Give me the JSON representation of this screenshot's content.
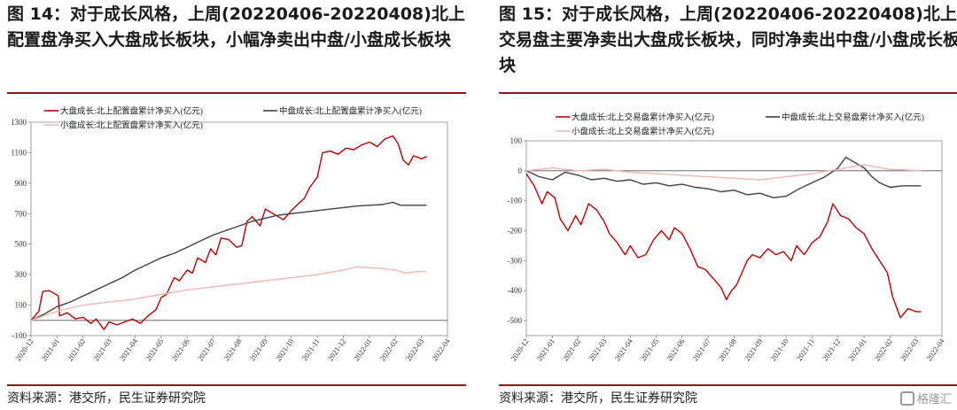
{
  "panels": [
    {
      "title": "图 14：对于成长风格，上周(20220406-20220408)北上配置盘净买入大盘成长板块，小幅净卖出中盘/小盘成长板块",
      "source": "资料来源：港交所，民生证券研究院"
    },
    {
      "title": "图 15：对于成长风格，上周(20220406-20220408)北上交易盘主要净卖出大盘成长板块，同时净卖出中盘/小盘成长板块",
      "source": "资料来源：港交所，民生证券研究院"
    }
  ],
  "watermark": "格隆汇",
  "chart_data": [
    {
      "type": "line",
      "ylim": [
        -100,
        1300
      ],
      "yticks": [
        -100,
        100,
        300,
        500,
        700,
        900,
        1100,
        1300
      ],
      "xticks": [
        "2020-12",
        "2021-01",
        "2021-02",
        "2021-03",
        "2021-04",
        "2021-05",
        "2021-06",
        "2021-07",
        "2021-08",
        "2021-09",
        "2021-10",
        "2021-11",
        "2021-12",
        "2022-01",
        "2022-02",
        "2022-03",
        "2022-04"
      ],
      "grid": false,
      "legend_position": "top",
      "series": [
        {
          "name": "大盘成长:北上配置盘累计净买入(亿元)",
          "color": "#c00000",
          "points": [
            [
              0,
              0
            ],
            [
              0.3,
              60
            ],
            [
              0.45,
              190
            ],
            [
              0.7,
              195
            ],
            [
              1.05,
              160
            ],
            [
              1.1,
              30
            ],
            [
              1.4,
              50
            ],
            [
              1.7,
              10
            ],
            [
              2.0,
              20
            ],
            [
              2.3,
              -20
            ],
            [
              2.5,
              10
            ],
            [
              2.8,
              -60
            ],
            [
              3.0,
              -10
            ],
            [
              3.3,
              -30
            ],
            [
              3.6,
              -10
            ],
            [
              3.9,
              10
            ],
            [
              4.2,
              -20
            ],
            [
              4.5,
              30
            ],
            [
              4.8,
              70
            ],
            [
              5.0,
              150
            ],
            [
              5.2,
              170
            ],
            [
              5.5,
              280
            ],
            [
              5.7,
              260
            ],
            [
              6.0,
              330
            ],
            [
              6.2,
              310
            ],
            [
              6.4,
              410
            ],
            [
              6.7,
              380
            ],
            [
              6.9,
              470
            ],
            [
              7.1,
              430
            ],
            [
              7.3,
              540
            ],
            [
              7.6,
              530
            ],
            [
              7.9,
              480
            ],
            [
              8.1,
              490
            ],
            [
              8.3,
              650
            ],
            [
              8.5,
              680
            ],
            [
              8.8,
              620
            ],
            [
              9.0,
              730
            ],
            [
              9.3,
              700
            ],
            [
              9.7,
              660
            ],
            [
              10.0,
              720
            ],
            [
              10.3,
              770
            ],
            [
              10.5,
              800
            ],
            [
              10.7,
              870
            ],
            [
              11.0,
              940
            ],
            [
              11.2,
              1100
            ],
            [
              11.5,
              1110
            ],
            [
              11.8,
              1090
            ],
            [
              12.1,
              1130
            ],
            [
              12.4,
              1120
            ],
            [
              12.7,
              1150
            ],
            [
              13.0,
              1170
            ],
            [
              13.3,
              1140
            ],
            [
              13.6,
              1190
            ],
            [
              13.9,
              1210
            ],
            [
              14.1,
              1160
            ],
            [
              14.3,
              1050
            ],
            [
              14.5,
              1020
            ],
            [
              14.7,
              1080
            ],
            [
              15.0,
              1060
            ],
            [
              15.2,
              1075
            ]
          ]
        },
        {
          "name": "中盘成长:北上配置盘累计净买入(亿元)",
          "color": "#404040",
          "points": [
            [
              0,
              0
            ],
            [
              0.5,
              40
            ],
            [
              1.0,
              90
            ],
            [
              1.5,
              120
            ],
            [
              2.0,
              160
            ],
            [
              2.5,
              200
            ],
            [
              3.0,
              240
            ],
            [
              3.5,
              280
            ],
            [
              4.0,
              330
            ],
            [
              4.5,
              370
            ],
            [
              5.0,
              410
            ],
            [
              5.5,
              440
            ],
            [
              6.0,
              480
            ],
            [
              6.5,
              520
            ],
            [
              7.0,
              560
            ],
            [
              7.5,
              590
            ],
            [
              8.0,
              620
            ],
            [
              8.5,
              650
            ],
            [
              9.0,
              670
            ],
            [
              9.5,
              690
            ],
            [
              10.0,
              700
            ],
            [
              10.5,
              710
            ],
            [
              11.0,
              720
            ],
            [
              11.5,
              730
            ],
            [
              12.0,
              740
            ],
            [
              12.5,
              750
            ],
            [
              13.0,
              755
            ],
            [
              13.5,
              760
            ],
            [
              13.9,
              775
            ],
            [
              14.2,
              755
            ],
            [
              14.6,
              755
            ],
            [
              15.2,
              755
            ]
          ]
        },
        {
          "name": "小盘成长:北上配置盘累计净买入(亿元)",
          "color": "#f2b8b8",
          "points": [
            [
              0,
              0
            ],
            [
              1.0,
              60
            ],
            [
              2.0,
              100
            ],
            [
              3.0,
              120
            ],
            [
              4.0,
              140
            ],
            [
              5.0,
              170
            ],
            [
              6.0,
              200
            ],
            [
              7.0,
              220
            ],
            [
              8.0,
              240
            ],
            [
              9.0,
              260
            ],
            [
              10.0,
              280
            ],
            [
              11.0,
              300
            ],
            [
              12.0,
              330
            ],
            [
              12.5,
              350
            ],
            [
              13.0,
              345
            ],
            [
              13.5,
              340
            ],
            [
              14.0,
              330
            ],
            [
              14.4,
              310
            ],
            [
              14.8,
              320
            ],
            [
              15.2,
              320
            ]
          ]
        }
      ]
    },
    {
      "type": "line",
      "ylim": [
        -550,
        100
      ],
      "yticks": [
        -500,
        -400,
        -300,
        -200,
        -100,
        0,
        100
      ],
      "xticks": [
        "2020-12",
        "2021-01",
        "2021-02",
        "2021-03",
        "2021-04",
        "2021-05",
        "2021-06",
        "2021-07",
        "2021-08",
        "2021-09",
        "2021-10",
        "2021-11",
        "2021-12",
        "2022-01",
        "2022-02",
        "2022-03",
        "2022-04"
      ],
      "grid": false,
      "legend_position": "top",
      "series": [
        {
          "name": "大盘成长:北上交易盘累计净买入(亿元)",
          "color": "#c00000",
          "points": [
            [
              0,
              -10
            ],
            [
              0.3,
              -50
            ],
            [
              0.6,
              -110
            ],
            [
              0.8,
              -70
            ],
            [
              1.1,
              -90
            ],
            [
              1.3,
              -160
            ],
            [
              1.6,
              -200
            ],
            [
              1.9,
              -150
            ],
            [
              2.1,
              -180
            ],
            [
              2.4,
              -110
            ],
            [
              2.7,
              -130
            ],
            [
              3.0,
              -170
            ],
            [
              3.2,
              -210
            ],
            [
              3.5,
              -240
            ],
            [
              3.8,
              -280
            ],
            [
              4.0,
              -250
            ],
            [
              4.3,
              -290
            ],
            [
              4.6,
              -280
            ],
            [
              4.9,
              -230
            ],
            [
              5.2,
              -200
            ],
            [
              5.5,
              -230
            ],
            [
              5.7,
              -190
            ],
            [
              6.0,
              -210
            ],
            [
              6.3,
              -260
            ],
            [
              6.6,
              -320
            ],
            [
              6.9,
              -330
            ],
            [
              7.2,
              -360
            ],
            [
              7.5,
              -390
            ],
            [
              7.7,
              -430
            ],
            [
              7.9,
              -400
            ],
            [
              8.1,
              -380
            ],
            [
              8.3,
              -340
            ],
            [
              8.5,
              -300
            ],
            [
              8.7,
              -280
            ],
            [
              9.0,
              -290
            ],
            [
              9.3,
              -260
            ],
            [
              9.6,
              -280
            ],
            [
              9.9,
              -270
            ],
            [
              10.2,
              -300
            ],
            [
              10.4,
              -250
            ],
            [
              10.7,
              -280
            ],
            [
              11.0,
              -240
            ],
            [
              11.3,
              -220
            ],
            [
              11.6,
              -170
            ],
            [
              11.8,
              -110
            ],
            [
              12.1,
              -150
            ],
            [
              12.4,
              -160
            ],
            [
              12.7,
              -190
            ],
            [
              13.0,
              -210
            ],
            [
              13.3,
              -260
            ],
            [
              13.6,
              -300
            ],
            [
              13.9,
              -340
            ],
            [
              14.1,
              -420
            ],
            [
              14.4,
              -490
            ],
            [
              14.7,
              -460
            ],
            [
              15.0,
              -470
            ],
            [
              15.2,
              -470
            ]
          ]
        },
        {
          "name": "中盘成长:北上交易盘累计净买入(亿元)",
          "color": "#404040",
          "points": [
            [
              0,
              0
            ],
            [
              0.5,
              -20
            ],
            [
              1.0,
              -30
            ],
            [
              1.5,
              -5
            ],
            [
              2.0,
              -15
            ],
            [
              2.5,
              -30
            ],
            [
              3.0,
              -25
            ],
            [
              3.5,
              -35
            ],
            [
              4.0,
              -30
            ],
            [
              4.5,
              -45
            ],
            [
              5.0,
              -40
            ],
            [
              5.5,
              -50
            ],
            [
              6.0,
              -45
            ],
            [
              6.5,
              -55
            ],
            [
              7.0,
              -60
            ],
            [
              7.5,
              -70
            ],
            [
              8.0,
              -65
            ],
            [
              8.5,
              -80
            ],
            [
              9.0,
              -75
            ],
            [
              9.5,
              -90
            ],
            [
              10.0,
              -85
            ],
            [
              10.5,
              -60
            ],
            [
              11.0,
              -40
            ],
            [
              11.5,
              -20
            ],
            [
              12.0,
              10
            ],
            [
              12.3,
              45
            ],
            [
              12.6,
              30
            ],
            [
              13.0,
              10
            ],
            [
              13.3,
              -20
            ],
            [
              13.6,
              -40
            ],
            [
              14.0,
              -55
            ],
            [
              14.5,
              -50
            ],
            [
              15.2,
              -50
            ]
          ]
        },
        {
          "name": "小盘成长:北上交易盘累计净买入(亿元)",
          "color": "#f2b8b8",
          "points": [
            [
              0,
              0
            ],
            [
              1.0,
              10
            ],
            [
              2.0,
              0
            ],
            [
              3.0,
              5
            ],
            [
              4.0,
              -5
            ],
            [
              5.0,
              -10
            ],
            [
              6.0,
              -15
            ],
            [
              7.0,
              -20
            ],
            [
              8.0,
              -25
            ],
            [
              9.0,
              -30
            ],
            [
              10.0,
              -20
            ],
            [
              11.0,
              -10
            ],
            [
              12.0,
              5
            ],
            [
              13.0,
              20
            ],
            [
              14.0,
              5
            ],
            [
              15.2,
              0
            ]
          ]
        }
      ]
    }
  ]
}
